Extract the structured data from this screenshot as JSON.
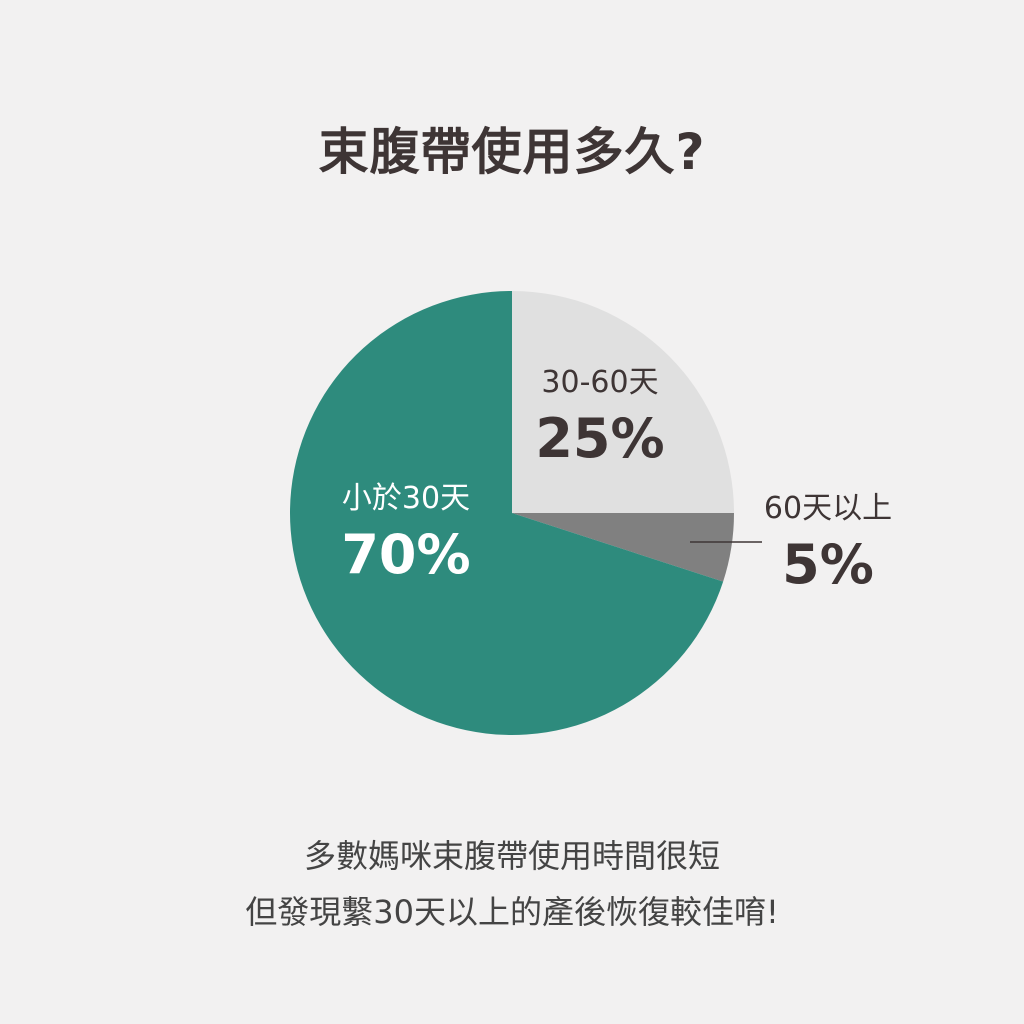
{
  "title": "束腹帶使用多久?",
  "chart_data": {
    "type": "pie",
    "title": "束腹帶使用多久?",
    "start_angle": "12 o'clock",
    "direction": "clockwise",
    "slices": [
      {
        "label": "30-60天",
        "value": 25,
        "display": "25%",
        "color": "#e0e0e0",
        "text_color": "#3e3535"
      },
      {
        "label": "60天以上",
        "value": 5,
        "display": "5%",
        "color": "#808080",
        "text_color": "#3e3535"
      },
      {
        "label": "小於30天",
        "value": 70,
        "display": "70%",
        "color": "#2e8b7d",
        "text_color": "#ffffff"
      }
    ]
  },
  "caption": {
    "line1": "多數媽咪束腹帶使用時間很短",
    "line2": "但發現繫30天以上的產後恢復較佳唷!"
  }
}
